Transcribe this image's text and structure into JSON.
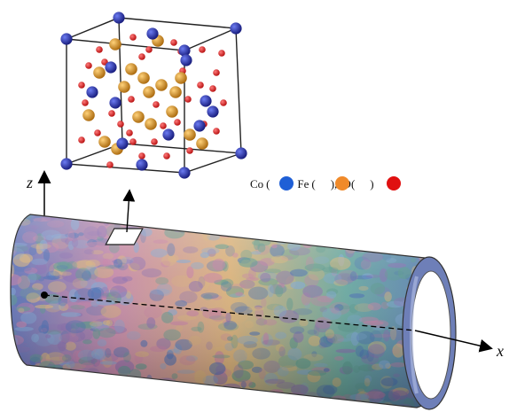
{
  "figure": {
    "axes": {
      "x": "x",
      "z": "z"
    },
    "legend": {
      "items": [
        {
          "element": "Co",
          "color": "#1f5fd6"
        },
        {
          "element": "Fe",
          "color": "#f08a2a"
        },
        {
          "element": "O",
          "color": "#e01010"
        }
      ]
    },
    "crystal_colors": {
      "co": "#1a1f9a",
      "fe": "#c98a12",
      "o": "#d8141a"
    },
    "tube_colors": [
      "#4a6fb4",
      "#7fa7d3",
      "#c47fa6",
      "#d8b47a",
      "#5c9a8e",
      "#8a6fb0"
    ]
  }
}
